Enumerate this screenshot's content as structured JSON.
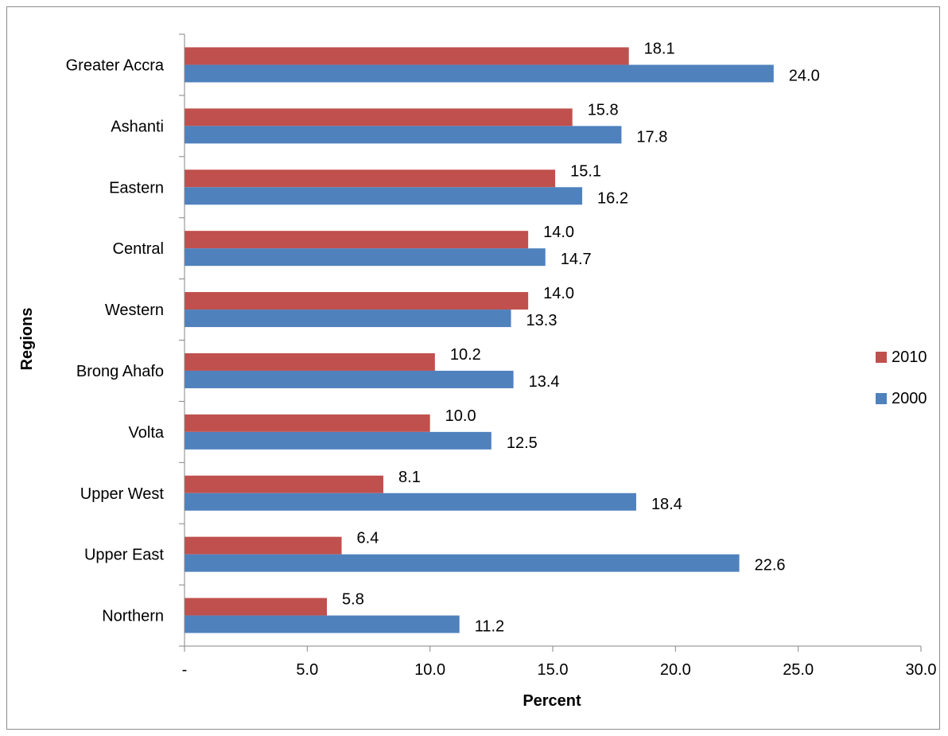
{
  "chart_data": {
    "type": "bar",
    "orientation": "horizontal",
    "categories": [
      "Greater Accra",
      "Ashanti",
      "Eastern",
      "Central",
      "Western",
      "Brong Ahafo",
      "Volta",
      "Upper West",
      "Upper East",
      "Northern"
    ],
    "series": [
      {
        "name": "2010",
        "color": "#C0504D",
        "values": [
          18.1,
          15.8,
          15.1,
          14.0,
          14.0,
          10.2,
          10.0,
          8.1,
          6.4,
          5.8
        ],
        "labels": [
          "18.1",
          "15.8",
          "15.1",
          "14.0",
          "14.0",
          "10.2",
          "10.0",
          "8.1",
          "6.4",
          "5.8"
        ]
      },
      {
        "name": "2000",
        "color": "#4F81BD",
        "values": [
          24.0,
          17.8,
          16.2,
          14.7,
          13.3,
          13.4,
          12.5,
          18.4,
          22.6,
          11.2
        ],
        "labels": [
          "24.0",
          "17.8",
          "16.2",
          "14.7",
          "13.3",
          "13.4",
          "12.5",
          "18.4",
          "22.6",
          "11.2"
        ]
      }
    ],
    "xlabel": "Percent",
    "ylabel": "Regions",
    "xlim": [
      0,
      30
    ],
    "xticks": [
      0,
      5,
      10,
      15,
      20,
      25,
      30
    ],
    "xtick_labels": [
      "-",
      "5.0",
      "10.0",
      "15.0",
      "20.0",
      "25.0",
      "30.0"
    ],
    "grid": false,
    "legend_position": "right",
    "legend_order": [
      "2010",
      "2000"
    ]
  }
}
